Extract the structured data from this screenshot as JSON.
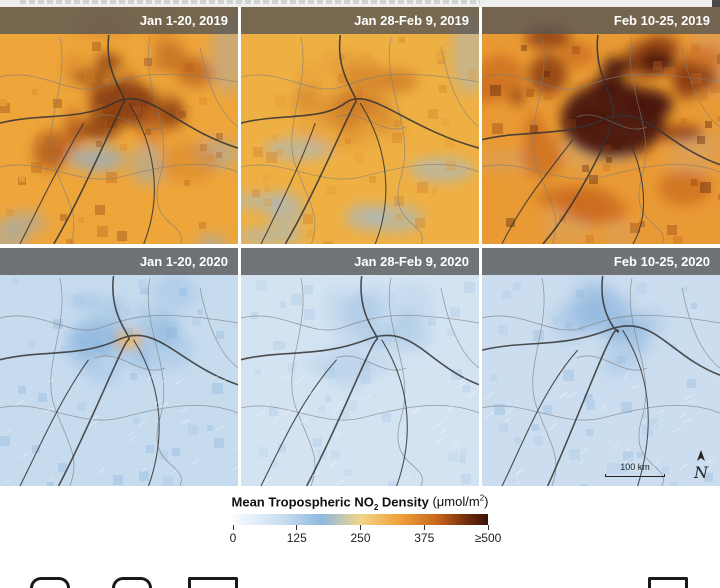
{
  "panels": [
    {
      "date": "Jan 1-20, 2019",
      "pollution": "high"
    },
    {
      "date": "Jan 28-Feb 9, 2019",
      "pollution": "moderate"
    },
    {
      "date": "Feb 10-25, 2019",
      "pollution": "very-high"
    },
    {
      "date": "Jan 1-20, 2020",
      "pollution": "low-hotspot"
    },
    {
      "date": "Jan 28-Feb 9, 2020",
      "pollution": "very-low"
    },
    {
      "date": "Feb 10-25, 2020",
      "pollution": "low"
    }
  ],
  "scalebar": {
    "label": "100 km"
  },
  "north_arrow": {
    "symbol": "N"
  },
  "legend": {
    "title_main": "Mean Tropospheric NO",
    "title_sub": "2",
    "title_after": " Density",
    "unit_open": " (μmol/m",
    "unit_sup": "2",
    "unit_close": ")",
    "ticks": [
      "0",
      "125",
      "250",
      "375",
      "≥500"
    ]
  },
  "colors": {
    "low": "#c9dcee",
    "mid": "#f0b240",
    "high": "#6b2a0c"
  }
}
